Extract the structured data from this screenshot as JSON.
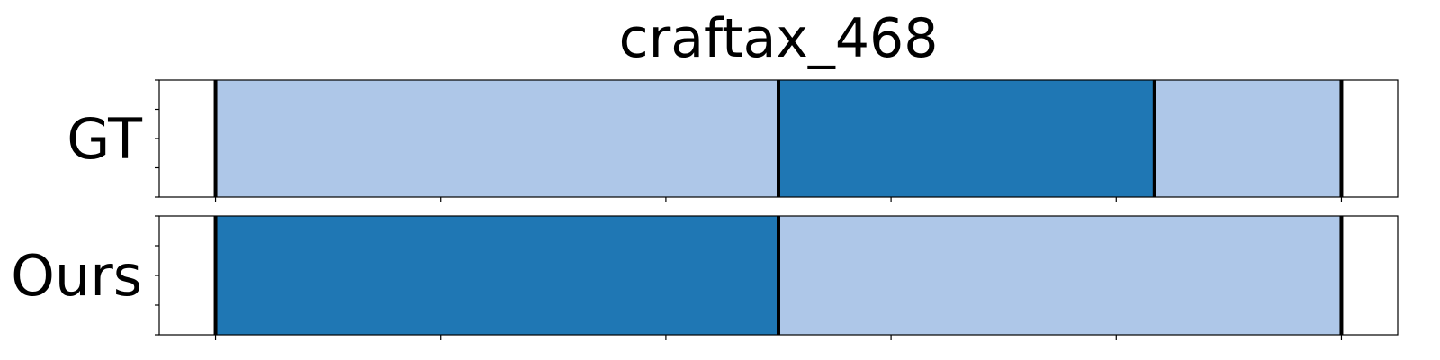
{
  "chart_data": {
    "type": "bar",
    "title": "craftax_468",
    "orientation": "horizontal-segments",
    "x_range": [
      -0.25,
      5.25
    ],
    "x_ticks": [
      0,
      1,
      2,
      3,
      4,
      5
    ],
    "rows": [
      {
        "label": "GT",
        "segments": [
          {
            "start": 0.0,
            "end": 2.5,
            "color": "#aec7e8"
          },
          {
            "start": 2.5,
            "end": 4.17,
            "color": "#1f77b4"
          },
          {
            "start": 4.17,
            "end": 5.0,
            "color": "#aec7e8"
          }
        ],
        "boundaries": [
          0.0,
          2.5,
          4.17,
          5.0
        ]
      },
      {
        "label": "Ours",
        "segments": [
          {
            "start": 0.0,
            "end": 2.5,
            "color": "#1f77b4"
          },
          {
            "start": 2.5,
            "end": 5.0,
            "color": "#aec7e8"
          }
        ],
        "boundaries": [
          0.0,
          2.5,
          5.0
        ]
      }
    ]
  }
}
